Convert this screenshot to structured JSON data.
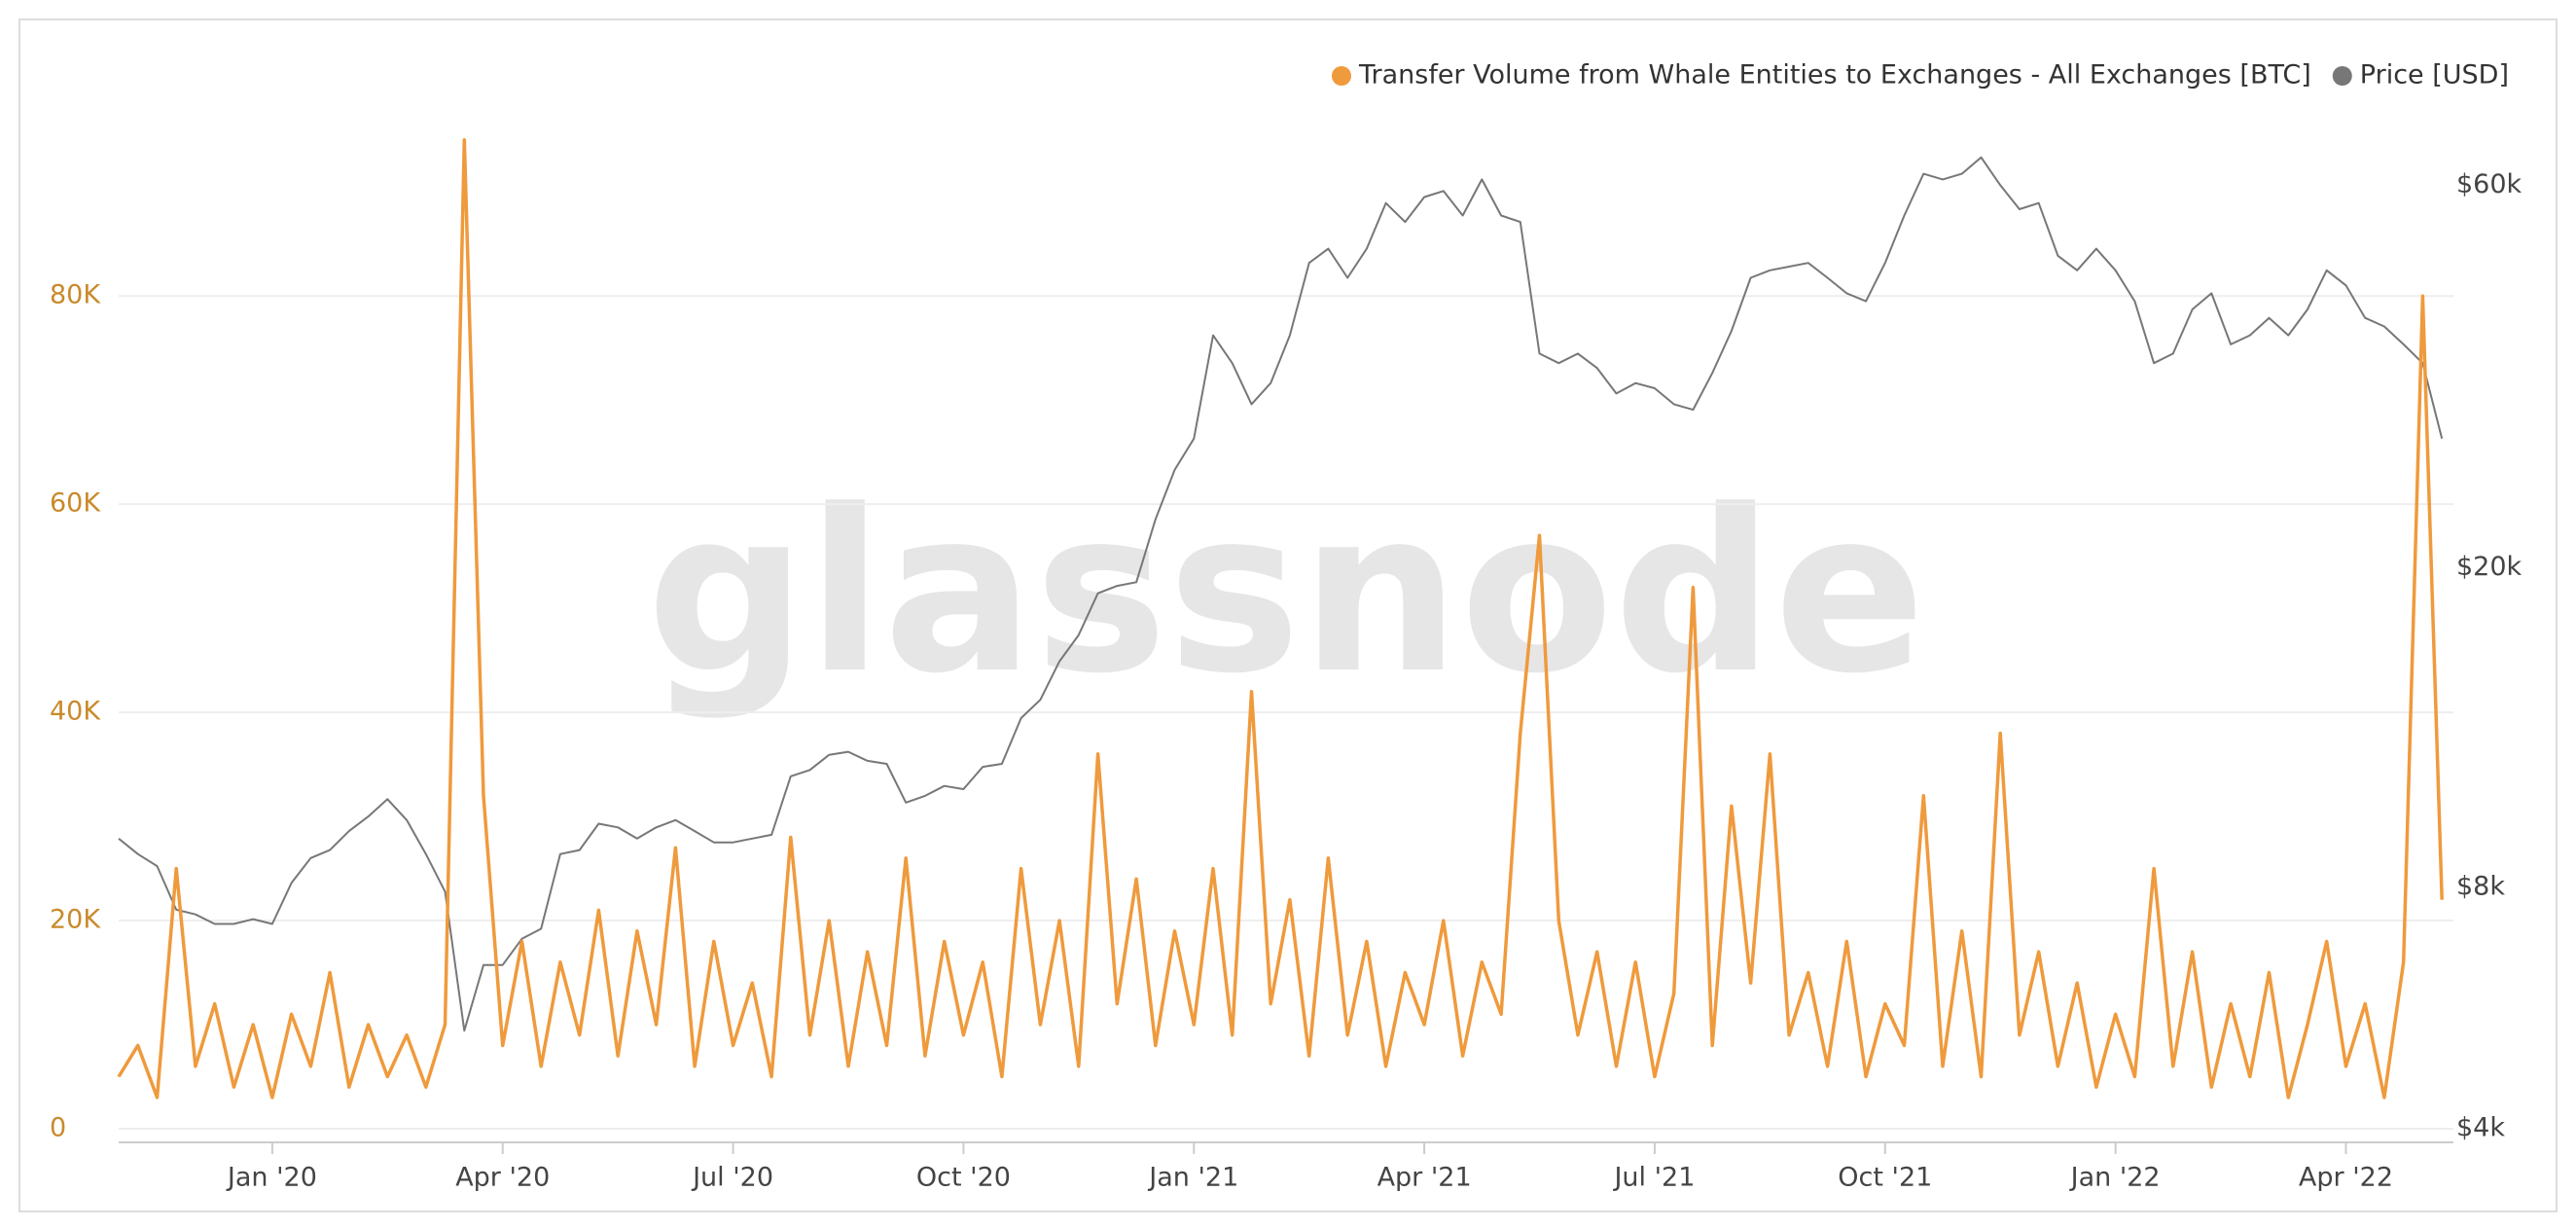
{
  "chart_data": {
    "type": "line",
    "watermark": "glassnode",
    "x": [
      -2,
      -1.75,
      -1.5,
      -1.25,
      -1,
      -0.75,
      -0.5,
      -0.25,
      0,
      0.25,
      0.5,
      0.75,
      1,
      1.25,
      1.5,
      1.75,
      2,
      2.25,
      2.5,
      2.75,
      3,
      3.25,
      3.5,
      3.75,
      4,
      4.25,
      4.5,
      4.75,
      5,
      5.25,
      5.5,
      5.75,
      6,
      6.25,
      6.5,
      6.75,
      7,
      7.25,
      7.5,
      7.75,
      8,
      8.25,
      8.5,
      8.75,
      9,
      9.25,
      9.5,
      9.75,
      10,
      10.25,
      10.5,
      10.75,
      11,
      11.25,
      11.5,
      11.75,
      12,
      12.25,
      12.5,
      12.75,
      13,
      13.25,
      13.5,
      13.75,
      14,
      14.25,
      14.5,
      14.75,
      15,
      15.25,
      15.5,
      15.75,
      16,
      16.25,
      16.5,
      16.75,
      17,
      17.25,
      17.5,
      17.75,
      18,
      18.25,
      18.5,
      18.75,
      19,
      19.25,
      19.5,
      19.75,
      20,
      20.25,
      20.5,
      20.75,
      21,
      21.25,
      21.5,
      21.75,
      22,
      22.25,
      22.5,
      22.75,
      23,
      23.25,
      23.5,
      23.75,
      24,
      24.25,
      24.5,
      24.75,
      25,
      25.25,
      25.5,
      25.75,
      26,
      26.25,
      26.5,
      26.75,
      27,
      27.25,
      27.5,
      27.75,
      28,
      28.25
    ],
    "xlim": [
      -2,
      28.4
    ],
    "xticks": [
      {
        "value": 0,
        "label": "Jan '20"
      },
      {
        "value": 3,
        "label": "Apr '20"
      },
      {
        "value": 6,
        "label": "Jul '20"
      },
      {
        "value": 9,
        "label": "Oct '20"
      },
      {
        "value": 12,
        "label": "Jan '21"
      },
      {
        "value": 15,
        "label": "Apr '21"
      },
      {
        "value": 18,
        "label": "Jul '21"
      },
      {
        "value": 21,
        "label": "Oct '21"
      },
      {
        "value": 24,
        "label": "Jan '22"
      },
      {
        "value": 27,
        "label": "Apr '22"
      }
    ],
    "ylim": [
      0,
      99000
    ],
    "yticks": [
      0,
      {
        "value": 20000,
        "label": "20K"
      },
      {
        "value": 40000,
        "label": "40K"
      },
      {
        "value": 60000,
        "label": "60K"
      },
      {
        "value": 80000,
        "label": "80K"
      }
    ],
    "y2lim": [
      4000,
      77000
    ],
    "y2_log": true,
    "y2ticks": [
      {
        "value": 4000,
        "label": "$4k"
      },
      {
        "value": 8000,
        "label": "$8k"
      },
      {
        "value": 20000,
        "label": "$20k"
      },
      {
        "value": 60000,
        "label": "$60k"
      }
    ],
    "grid": true,
    "legend": "top-right",
    "series": [
      {
        "name": "Transfer Volume from Whale Entities to Exchanges - All Exchanges [BTC]",
        "color": "#ef9a3c",
        "values": [
          5000,
          8000,
          3000,
          25000,
          6000,
          12000,
          4000,
          10000,
          3000,
          11000,
          6000,
          15000,
          4000,
          10000,
          5000,
          9000,
          4000,
          10000,
          95000,
          32000,
          8000,
          18000,
          6000,
          16000,
          9000,
          21000,
          7000,
          19000,
          10000,
          27000,
          6000,
          18000,
          8000,
          14000,
          5000,
          28000,
          9000,
          20000,
          6000,
          17000,
          8000,
          26000,
          7000,
          18000,
          9000,
          16000,
          5000,
          25000,
          10000,
          20000,
          6000,
          36000,
          12000,
          24000,
          8000,
          19000,
          10000,
          25000,
          9000,
          42000,
          12000,
          22000,
          7000,
          26000,
          9000,
          18000,
          6000,
          15000,
          10000,
          20000,
          7000,
          16000,
          11000,
          38000,
          57000,
          20000,
          9000,
          17000,
          6000,
          16000,
          5000,
          13000,
          52000,
          8000,
          31000,
          14000,
          36000,
          9000,
          15000,
          6000,
          18000,
          5000,
          12000,
          8000,
          32000,
          6000,
          19000,
          5000,
          38000,
          9000,
          17000,
          6000,
          14000,
          4000,
          11000,
          5000,
          25000,
          6000,
          17000,
          4000,
          12000,
          5000,
          15000,
          3000,
          10000,
          18000,
          6000,
          12000,
          3000,
          16000,
          80000,
          22000
        ]
      },
      {
        "name": "Price [USD]",
        "color": "#777777",
        "axis": "y2",
        "values": [
          9200,
          8800,
          8500,
          7500,
          7400,
          7200,
          7200,
          7300,
          7200,
          8100,
          8700,
          8900,
          9400,
          9800,
          10300,
          9700,
          8800,
          7900,
          5300,
          6400,
          6400,
          6900,
          7100,
          8800,
          8900,
          9600,
          9500,
          9200,
          9500,
          9700,
          9400,
          9100,
          9100,
          9200,
          9300,
          11000,
          11200,
          11700,
          11800,
          11500,
          11400,
          10200,
          10400,
          10700,
          10600,
          11300,
          11400,
          13000,
          13700,
          15300,
          16500,
          18600,
          19000,
          19200,
          23000,
          26500,
          29000,
          39000,
          36000,
          32000,
          34000,
          39000,
          48000,
          50000,
          46000,
          50000,
          57000,
          54000,
          58000,
          59000,
          55000,
          61000,
          55000,
          54000,
          37000,
          36000,
          37000,
          35500,
          33000,
          34000,
          33500,
          32000,
          31500,
          35000,
          39500,
          46000,
          47000,
          47500,
          48000,
          46000,
          44000,
          43000,
          48000,
          55000,
          62000,
          61000,
          62000,
          65000,
          60000,
          56000,
          57000,
          49000,
          47000,
          50000,
          47000,
          43000,
          36000,
          37000,
          42000,
          44000,
          38000,
          39000,
          41000,
          39000,
          42000,
          47000,
          45000,
          41000,
          40000,
          38000,
          36000,
          29000
        ]
      }
    ]
  }
}
